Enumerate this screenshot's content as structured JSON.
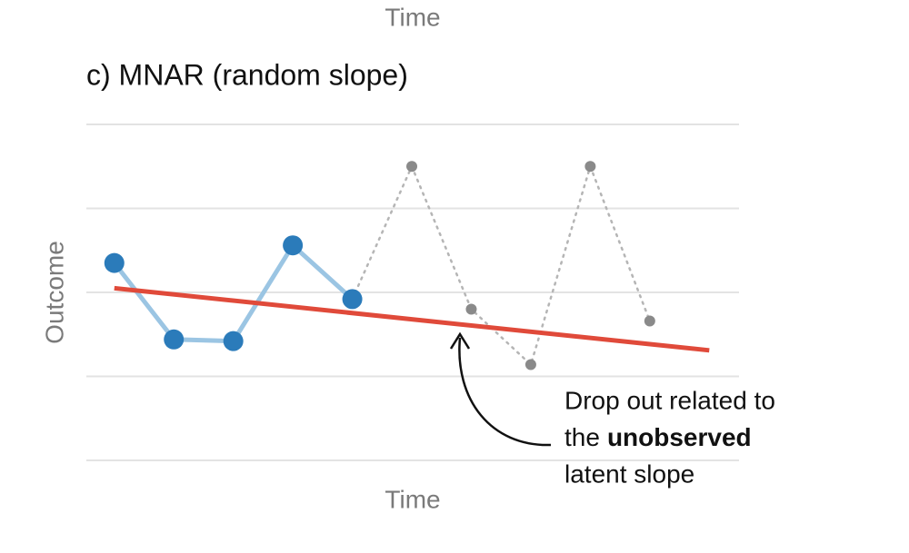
{
  "chart_data": {
    "type": "line",
    "top_label": "Time",
    "title": "c) MNAR (random slope)",
    "x_label": "Time",
    "y_label": "Outcome",
    "x": [
      1,
      2,
      3,
      4,
      5,
      6,
      7,
      8,
      9,
      10
    ],
    "xlim": [
      0.53,
      11.5
    ],
    "ylim": [
      0,
      4
    ],
    "yticks": [
      0,
      1,
      2,
      3,
      4
    ],
    "grid": true,
    "series": [
      {
        "color": "#2b7bba",
        "line_color": "#9bc5e3",
        "style": "solid",
        "values": [
          2.35,
          1.44,
          1.42,
          2.56,
          1.92,
          null,
          null,
          null,
          null,
          null
        ]
      },
      {
        "color": "#8a8a8a",
        "line_color": "#b5b5b5",
        "style": "dotted",
        "values": [
          null,
          null,
          null,
          null,
          1.92,
          3.5,
          1.8,
          1.14,
          3.5,
          1.66
        ]
      }
    ],
    "trend": {
      "x": [
        1,
        11
      ],
      "values": [
        2.05,
        1.31
      ],
      "color": "#e04a3a"
    },
    "annotation": {
      "line1": "Drop out related to",
      "line2": "the",
      "bold": "unobserved",
      "line3": "latent slope"
    }
  }
}
